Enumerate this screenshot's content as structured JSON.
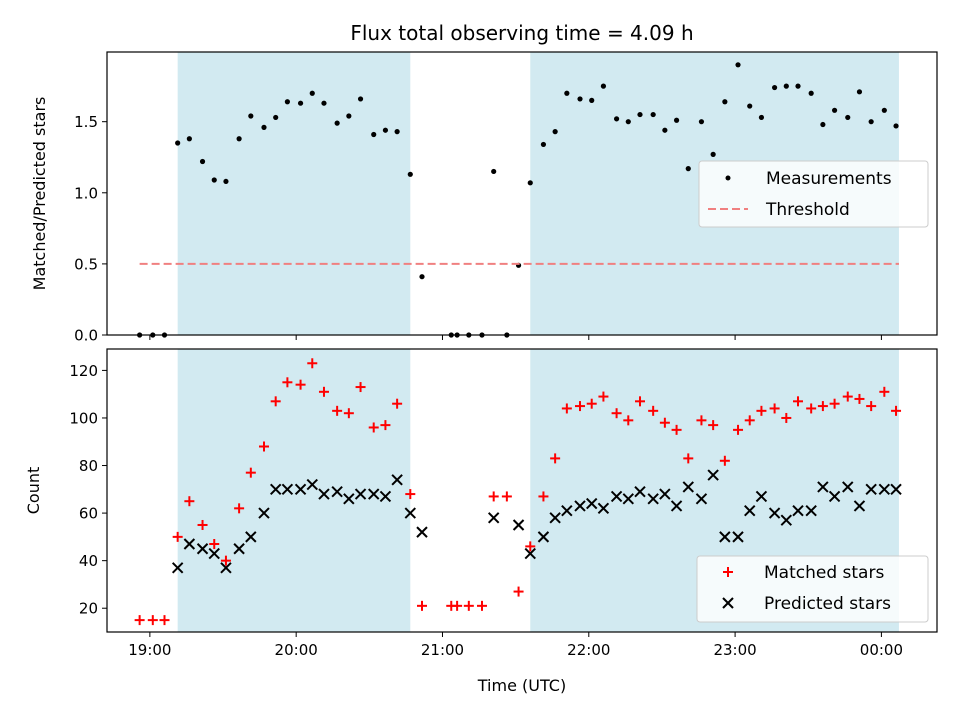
{
  "chart_data": [
    {
      "type": "scatter",
      "title": "Flux total observing time = 4.09 h",
      "xlabel": "",
      "ylabel": "Matched/Predicted stars",
      "ylim": [
        0,
        1.99
      ],
      "yticks": [
        0.0,
        0.5,
        1.0,
        1.5
      ],
      "ytick_labels": [
        "0.0",
        "0.5",
        "1.0",
        "1.5"
      ],
      "xlim": [
        18.707,
        24.38
      ],
      "xticks": [
        19,
        20,
        21,
        22,
        23,
        24
      ],
      "shaded_intervals": [
        [
          19.19,
          20.78
        ],
        [
          21.6,
          24.12
        ]
      ],
      "shade_color": "#add8e6",
      "legend": {
        "placement": "center-right",
        "entries": [
          {
            "label": "Measurements",
            "marker": "dot",
            "color": "#000000"
          },
          {
            "label": "Threshold",
            "marker": "dashed-line",
            "color": "#f08080"
          }
        ]
      },
      "series": [
        {
          "name": "Measurements",
          "color": "#000000",
          "marker": "dot",
          "x": [
            18.93,
            19.02,
            19.1,
            19.19,
            19.27,
            19.36,
            19.44,
            19.52,
            19.61,
            19.69,
            19.78,
            19.86,
            19.94,
            20.03,
            20.11,
            20.19,
            20.28,
            20.36,
            20.44,
            20.53,
            20.61,
            20.69,
            20.78,
            20.86,
            21.06,
            21.1,
            21.18,
            21.27,
            21.35,
            21.44,
            21.52,
            21.6,
            21.69,
            21.77,
            21.85,
            21.94,
            22.02,
            22.1,
            22.19,
            22.27,
            22.35,
            22.44,
            22.52,
            22.6,
            22.68,
            22.77,
            22.85,
            22.93,
            23.02,
            23.1,
            23.18,
            23.27,
            23.35,
            23.43,
            23.52,
            23.6,
            23.68,
            23.77,
            23.85,
            23.93,
            24.02,
            24.1
          ],
          "y": [
            0.0,
            0.0,
            0.0,
            1.35,
            1.38,
            1.22,
            1.09,
            1.08,
            1.38,
            1.54,
            1.46,
            1.53,
            1.64,
            1.63,
            1.7,
            1.63,
            1.49,
            1.54,
            1.66,
            1.41,
            1.44,
            1.43,
            1.13,
            0.41,
            0.0,
            0.0,
            0.0,
            0.0,
            1.15,
            0.0,
            0.49,
            1.07,
            1.34,
            1.43,
            1.7,
            1.66,
            1.65,
            1.75,
            1.52,
            1.5,
            1.55,
            1.55,
            1.44,
            1.51,
            1.17,
            1.5,
            1.27,
            1.64,
            1.9,
            1.61,
            1.53,
            1.74,
            1.75,
            1.75,
            1.7,
            1.48,
            1.58,
            1.53,
            1.71,
            1.5,
            1.58,
            1.47
          ]
        },
        {
          "name": "Threshold",
          "color": "#f08080",
          "marker": "dashed-line",
          "x": [
            18.93,
            24.12
          ],
          "y": [
            0.5,
            0.5
          ]
        }
      ]
    },
    {
      "type": "scatter",
      "title": "",
      "xlabel": "Time (UTC)",
      "ylabel": "Count",
      "ylim": [
        10,
        129
      ],
      "yticks": [
        20,
        40,
        60,
        80,
        100,
        120
      ],
      "xlim": [
        18.707,
        24.38
      ],
      "xticks": [
        19,
        20,
        21,
        22,
        23,
        24
      ],
      "xtick_labels": [
        "19:00",
        "20:00",
        "21:00",
        "22:00",
        "23:00",
        "00:00"
      ],
      "shaded_intervals": [
        [
          19.19,
          20.78
        ],
        [
          21.6,
          24.12
        ]
      ],
      "shade_color": "#add8e6",
      "legend": {
        "placement": "bottom-right",
        "entries": [
          {
            "label": "Matched stars",
            "marker": "plus",
            "color": "#ff0000"
          },
          {
            "label": "Predicted stars",
            "marker": "x",
            "color": "#000000"
          }
        ]
      },
      "series": [
        {
          "name": "Matched stars",
          "color": "#ff0000",
          "marker": "plus",
          "x": [
            18.93,
            19.02,
            19.1,
            19.19,
            19.27,
            19.36,
            19.44,
            19.52,
            19.61,
            19.69,
            19.78,
            19.86,
            19.94,
            20.03,
            20.11,
            20.19,
            20.28,
            20.36,
            20.44,
            20.53,
            20.61,
            20.69,
            20.78,
            20.86,
            21.06,
            21.1,
            21.18,
            21.27,
            21.35,
            21.44,
            21.52,
            21.6,
            21.69,
            21.77,
            21.85,
            21.94,
            22.02,
            22.1,
            22.19,
            22.27,
            22.35,
            22.44,
            22.52,
            22.6,
            22.68,
            22.77,
            22.85,
            22.93,
            23.02,
            23.1,
            23.18,
            23.27,
            23.35,
            23.43,
            23.52,
            23.6,
            23.68,
            23.77,
            23.85,
            23.93,
            24.02,
            24.1
          ],
          "y": [
            15,
            15,
            15,
            50,
            65,
            55,
            47,
            40,
            62,
            77,
            88,
            107,
            115,
            114,
            123,
            111,
            103,
            102,
            113,
            96,
            97,
            106,
            68,
            21,
            21,
            21,
            21,
            21,
            67,
            67,
            27,
            46,
            67,
            83,
            104,
            105,
            106,
            109,
            102,
            99,
            107,
            103,
            98,
            95,
            83,
            99,
            97,
            82,
            95,
            99,
            103,
            104,
            100,
            107,
            104,
            105,
            106,
            109,
            108,
            105,
            111,
            103
          ]
        },
        {
          "name": "Predicted stars",
          "color": "#000000",
          "marker": "x",
          "x": [
            19.19,
            19.27,
            19.36,
            19.44,
            19.52,
            19.61,
            19.69,
            19.78,
            19.86,
            19.94,
            20.03,
            20.11,
            20.19,
            20.28,
            20.36,
            20.44,
            20.53,
            20.61,
            20.69,
            20.78,
            20.86,
            21.35,
            21.52,
            21.6,
            21.69,
            21.77,
            21.85,
            21.94,
            22.02,
            22.1,
            22.19,
            22.27,
            22.35,
            22.44,
            22.52,
            22.6,
            22.68,
            22.77,
            22.85,
            22.93,
            23.02,
            23.1,
            23.18,
            23.27,
            23.35,
            23.43,
            23.52,
            23.6,
            23.68,
            23.77,
            23.85,
            23.93,
            24.02,
            24.1
          ],
          "y": [
            37,
            47,
            45,
            43,
            37,
            45,
            50,
            60,
            70,
            70,
            70,
            72,
            68,
            69,
            66,
            68,
            68,
            67,
            74,
            60,
            52,
            58,
            55,
            43,
            50,
            58,
            61,
            63,
            64,
            62,
            67,
            66,
            69,
            66,
            68,
            63,
            71,
            66,
            76,
            50,
            50,
            61,
            67,
            60,
            57,
            61,
            61,
            71,
            67,
            71,
            63,
            70,
            70,
            70
          ]
        }
      ]
    }
  ]
}
